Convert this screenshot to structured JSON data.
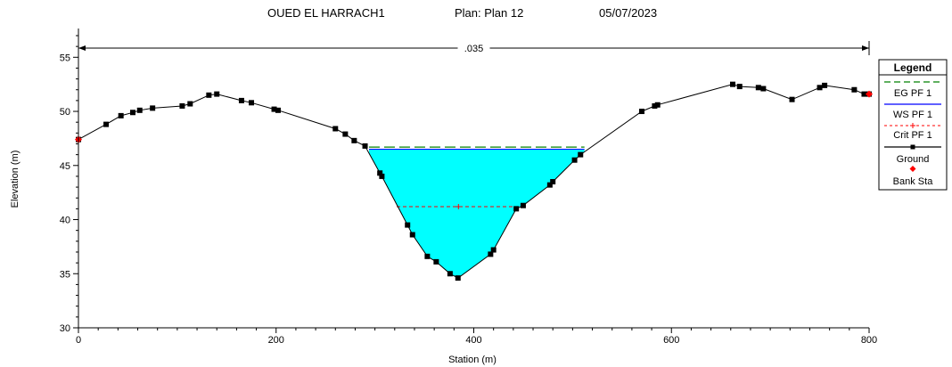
{
  "header": {
    "river": "OUED EL HARRACH1",
    "plan": "Plan: Plan 12",
    "date": "05/07/2023"
  },
  "chart_data": {
    "type": "line",
    "xlabel": "Station (m)",
    "ylabel": "Elevation (m)",
    "xlim": [
      0,
      800
    ],
    "ylim": [
      30,
      57
    ],
    "xticks": [
      0,
      200,
      400,
      600,
      800
    ],
    "yticks": [
      30,
      35,
      40,
      45,
      50,
      55
    ],
    "grid": false,
    "legend_position": "right",
    "manning": {
      "label": ".035",
      "x_start": 0,
      "x_end": 800
    },
    "ground": [
      [
        0,
        47.4
      ],
      [
        28,
        48.8
      ],
      [
        43,
        49.6
      ],
      [
        55,
        49.9
      ],
      [
        62,
        50.1
      ],
      [
        75,
        50.3
      ],
      [
        105,
        50.5
      ],
      [
        113,
        50.7
      ],
      [
        132,
        51.5
      ],
      [
        140,
        51.6
      ],
      [
        165,
        51.0
      ],
      [
        175,
        50.8
      ],
      [
        198,
        50.2
      ],
      [
        202,
        50.1
      ],
      [
        260,
        48.4
      ],
      [
        270,
        47.9
      ],
      [
        279,
        47.3
      ],
      [
        290,
        46.8
      ],
      [
        305,
        44.3
      ],
      [
        307,
        44.0
      ],
      [
        333,
        39.5
      ],
      [
        338,
        38.6
      ],
      [
        353,
        36.6
      ],
      [
        362,
        36.1
      ],
      [
        376,
        35.0
      ],
      [
        384,
        34.6
      ],
      [
        417,
        36.8
      ],
      [
        420,
        37.2
      ],
      [
        443,
        41.0
      ],
      [
        450,
        41.3
      ],
      [
        477,
        43.2
      ],
      [
        480,
        43.5
      ],
      [
        502,
        45.5
      ],
      [
        508,
        46.0
      ],
      [
        570,
        50.0
      ],
      [
        583,
        50.5
      ],
      [
        586,
        50.6
      ],
      [
        662,
        52.5
      ],
      [
        669,
        52.3
      ],
      [
        688,
        52.2
      ],
      [
        693,
        52.1
      ],
      [
        722,
        51.1
      ],
      [
        750,
        52.2
      ],
      [
        755,
        52.4
      ],
      [
        785,
        52.0
      ],
      [
        795,
        51.6
      ],
      [
        800,
        51.6
      ]
    ],
    "series": [
      {
        "name": "EG PF 1",
        "type": "line",
        "color": "#008000",
        "dash": "dashed",
        "y": 46.7,
        "x": [
          294,
          512
        ]
      },
      {
        "name": "WS PF 1",
        "type": "line",
        "color": "#0000ff",
        "y": 46.5,
        "x": [
          294,
          512
        ],
        "fill": "#00ffff"
      },
      {
        "name": "Crit PF 1",
        "type": "line",
        "color": "#ff0000",
        "dash": "dashed",
        "marker": "+",
        "y": 41.2,
        "x": [
          322,
          447
        ]
      },
      {
        "name": "Ground",
        "type": "line",
        "color": "#000000",
        "marker": "square"
      },
      {
        "name": "Bank Sta",
        "type": "scatter",
        "color": "#ff0000",
        "marker": "diamond",
        "points": [
          [
            0,
            47.4
          ],
          [
            800,
            51.6
          ]
        ]
      }
    ],
    "legend_title": "Legend"
  },
  "colors": {
    "ground": "#000000",
    "water_fill": "#00ffff",
    "water_line": "#0000ff",
    "eg": "#008000",
    "crit": "#ff0000",
    "bank": "#ff0000"
  }
}
